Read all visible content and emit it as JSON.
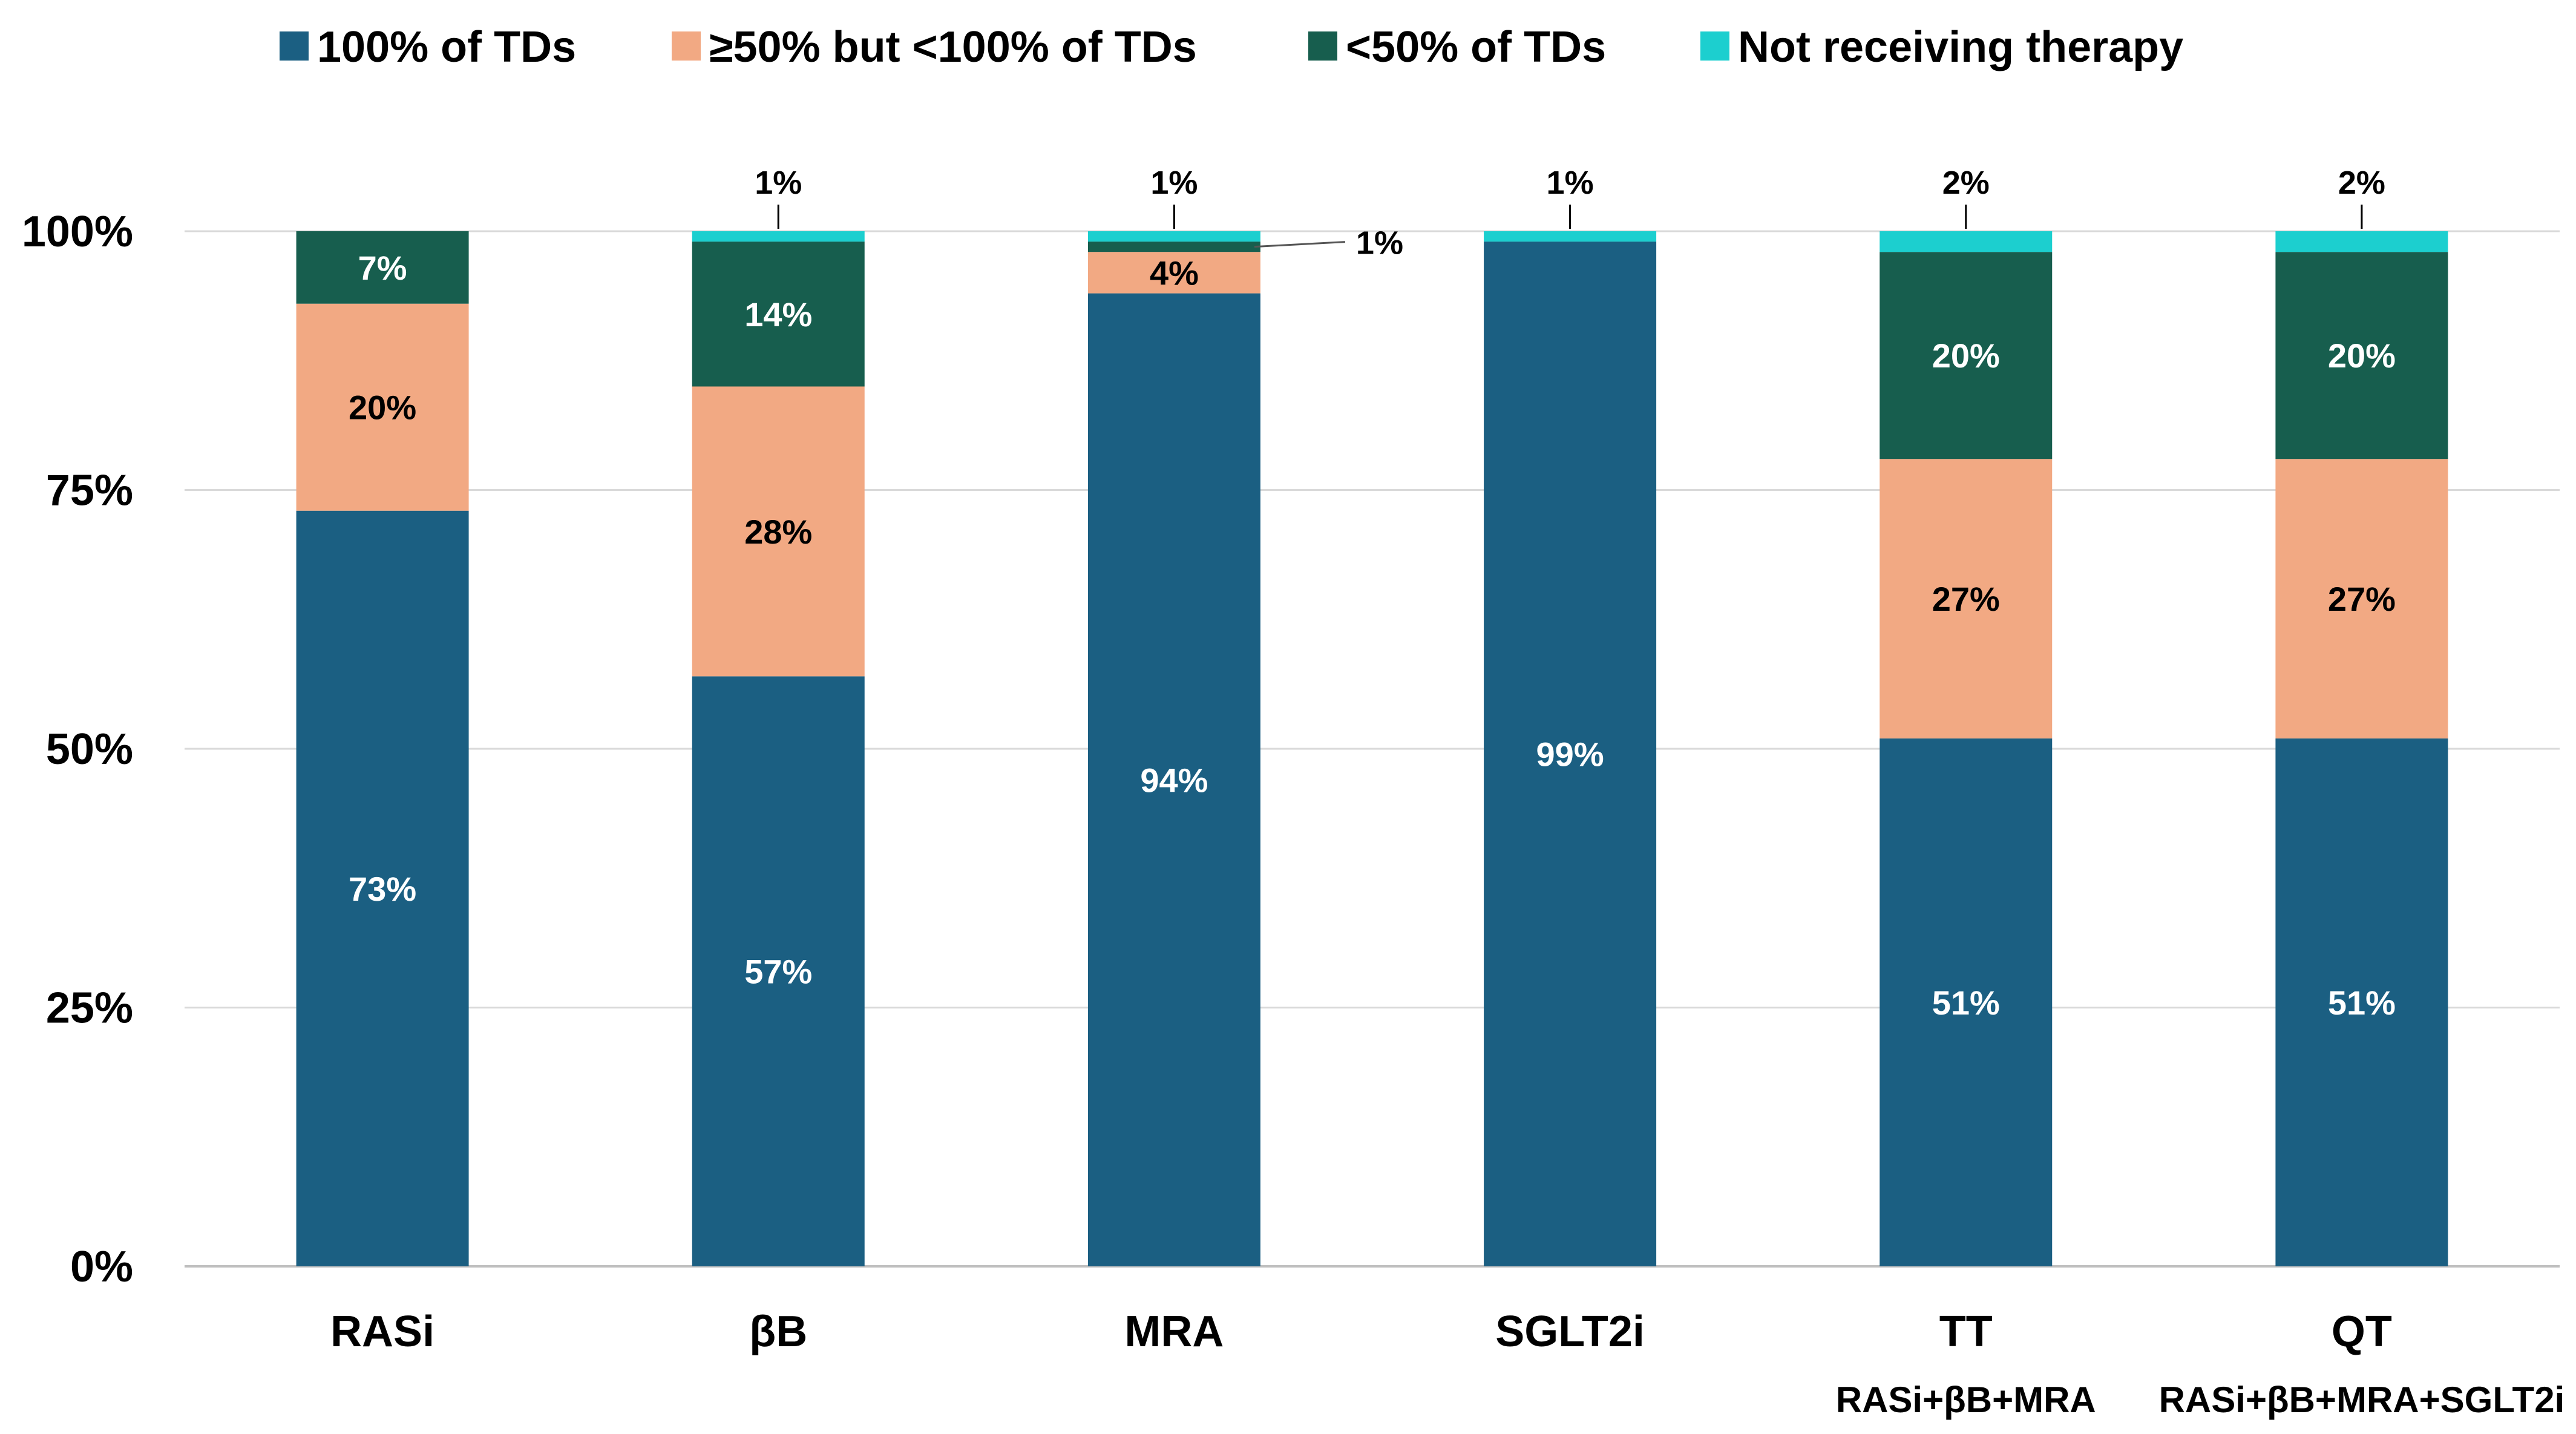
{
  "chart_data": {
    "type": "bar",
    "stacked": true,
    "title": "",
    "xlabel": "",
    "ylabel": "",
    "ylim": [
      0,
      100
    ],
    "yticks": [
      0,
      25,
      50,
      75,
      100
    ],
    "ytick_labels": [
      "0%",
      "25%",
      "50%",
      "75%",
      "100%"
    ],
    "grid": true,
    "legend_position": "top",
    "categories": [
      "RASi",
      "βB",
      "MRA",
      "SGLT2i",
      "TT",
      "QT"
    ],
    "category_sublabels": [
      "",
      "",
      "",
      "",
      "RASi+βB+MRA",
      "RASi+βB+MRA+SGLT2i"
    ],
    "series": [
      {
        "name": "100% of TDs",
        "color": "#1b5f82",
        "label_color": "#ffffff",
        "values": [
          73,
          57,
          94,
          99,
          51,
          51
        ],
        "labels": [
          "73%",
          "57%",
          "94%",
          "99%",
          "51%",
          "51%"
        ]
      },
      {
        "name": "≥50% but <100% of TDs",
        "color": "#f2a983",
        "label_color": "#000000",
        "values": [
          20,
          28,
          4,
          0,
          27,
          27
        ],
        "labels": [
          "20%",
          "28%",
          "4%",
          "",
          "27%",
          "27%"
        ]
      },
      {
        "name": "<50% of TDs",
        "color": "#175e4e",
        "label_color": "#ffffff",
        "values": [
          7,
          14,
          1,
          0,
          20,
          20
        ],
        "labels": [
          "7%",
          "14%",
          "",
          "",
          "20%",
          "20%"
        ]
      },
      {
        "name": "Not receiving therapy",
        "color": "#1ccfcf",
        "label_color": "#000000",
        "values": [
          0,
          1,
          1,
          1,
          2,
          2
        ],
        "labels": [
          "",
          "",
          "",
          "",
          "",
          ""
        ]
      }
    ],
    "callouts": [
      {
        "category": "βB",
        "series": "Not receiving therapy",
        "text": "1%",
        "placement": "above"
      },
      {
        "category": "MRA",
        "series": "Not receiving therapy",
        "text": "1%",
        "placement": "above"
      },
      {
        "category": "MRA",
        "series": "<50% of TDs",
        "text": "1%",
        "placement": "right"
      },
      {
        "category": "SGLT2i",
        "series": "Not receiving therapy",
        "text": "1%",
        "placement": "above"
      },
      {
        "category": "TT",
        "series": "Not receiving therapy",
        "text": "2%",
        "placement": "above"
      },
      {
        "category": "QT",
        "series": "Not receiving therapy",
        "text": "2%",
        "placement": "above"
      }
    ]
  }
}
